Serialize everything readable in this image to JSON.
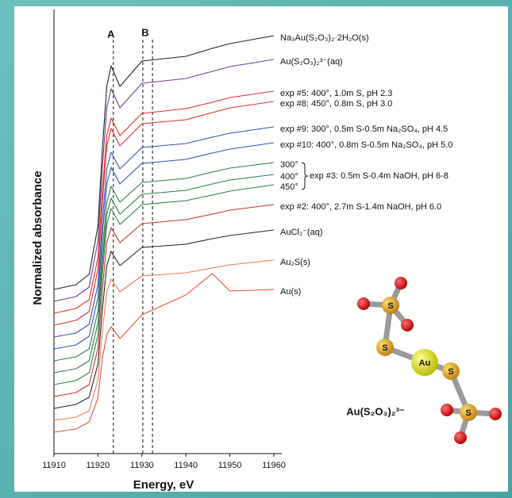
{
  "chart_data": {
    "type": "line",
    "xlabel": "Energy, eV",
    "ylabel": "Normalized absorbance",
    "x": [
      11910,
      11915,
      11918,
      11920,
      11921,
      11922,
      11923,
      11925,
      11930,
      11940,
      11946,
      11950,
      11960
    ],
    "xlim": [
      11910,
      11960
    ],
    "xticks": [
      11910,
      11920,
      11930,
      11940,
      11950,
      11960
    ],
    "ylim": [
      0,
      560
    ],
    "series": [
      {
        "name": "Na₃Au(S₂O₃)₂·2H₂O(s)",
        "color": "#222222",
        "values": [
          207,
          213,
          226,
          287,
          383,
          463,
          489,
          463,
          495,
          501,
          511,
          517,
          527
        ]
      },
      {
        "name": "Au(S₂O₃)₂³⁻(aq)",
        "color": "#6b3f90",
        "values": [
          192,
          198,
          210,
          268,
          360,
          436,
          460,
          436,
          467,
          473,
          482,
          488,
          497
        ]
      },
      {
        "name": "exp #5: 400°, 1.0m S, pH 2.3",
        "color": "#e0302a",
        "values": [
          177,
          183,
          194,
          247,
          331,
          401,
          423,
          401,
          429,
          435,
          443,
          449,
          457
        ]
      },
      {
        "name": "exp #8: 450°, 0.8m S, pH 3.0",
        "color": "#e0302a",
        "values": [
          162,
          168,
          179,
          233,
          317,
          388,
          410,
          388,
          416,
          421,
          430,
          436,
          444
        ]
      },
      {
        "name": "exp #9: 300°, 0.5m S-0.5m Na₂SO₄, pH 4.5",
        "color": "#3550b0",
        "values": [
          147,
          152,
          163,
          213,
          293,
          359,
          380,
          359,
          386,
          391,
          399,
          404,
          412
        ]
      },
      {
        "name": "exp #10: 400°, 0.8m S-0.5m Na₂SO₄, pH 5.0",
        "color": "#3550b0",
        "values": [
          132,
          137,
          148,
          197,
          275,
          340,
          361,
          340,
          366,
          371,
          379,
          384,
          392
        ]
      },
      {
        "name": "300°",
        "color": "#2e7d4a",
        "values": [
          117,
          122,
          132,
          180,
          255,
          317,
          337,
          317,
          342,
          347,
          355,
          360,
          367
        ]
      },
      {
        "name": "400°",
        "color": "#2e7d4a",
        "values": [
          102,
          107,
          117,
          165,
          240,
          302,
          322,
          302,
          327,
          332,
          340,
          345,
          352
        ]
      },
      {
        "name": "450°",
        "color": "#2e7d4a",
        "values": [
          87,
          92,
          102,
          150,
          226,
          289,
          309,
          289,
          314,
          319,
          326,
          331,
          339
        ]
      },
      {
        "name": "exp #2: 400°, 2.7m S-1.4m NaOH, pH 6.0",
        "color": "#c8362e",
        "values": [
          72,
          77,
          87,
          133,
          205,
          266,
          285,
          266,
          290,
          295,
          302,
          307,
          314
        ]
      },
      {
        "name": "AuCl₂⁻(aq)",
        "color": "#222222",
        "values": [
          57,
          62,
          71,
          113,
          181,
          237,
          255,
          237,
          260,
          264,
          271,
          275,
          282
        ]
      },
      {
        "name": "Au₂S(s)",
        "color": "#f07a55",
        "values": [
          42,
          46,
          54,
          93,
          153,
          204,
          220,
          204,
          224,
          228,
          234,
          238,
          244
        ]
      },
      {
        "name": "Au(s)",
        "color": "#e8503a",
        "values": [
          27,
          31,
          40,
          70,
          120,
          150,
          160,
          145,
          175,
          200,
          227,
          205,
          207
        ]
      }
    ],
    "reference_lines": [
      {
        "label": "A",
        "x": [
          11923.5
        ]
      },
      {
        "label": "B",
        "x": [
          11930.2,
          11932.4
        ]
      }
    ],
    "annotations": [
      {
        "text": "exp #3: 0.5m S-0.4m NaOH, pH 6-8"
      }
    ]
  },
  "molecule": {
    "label": "Au(S₂O₃)₂³⁻",
    "atoms": [
      "S",
      "S",
      "Au",
      "S",
      "S"
    ]
  }
}
